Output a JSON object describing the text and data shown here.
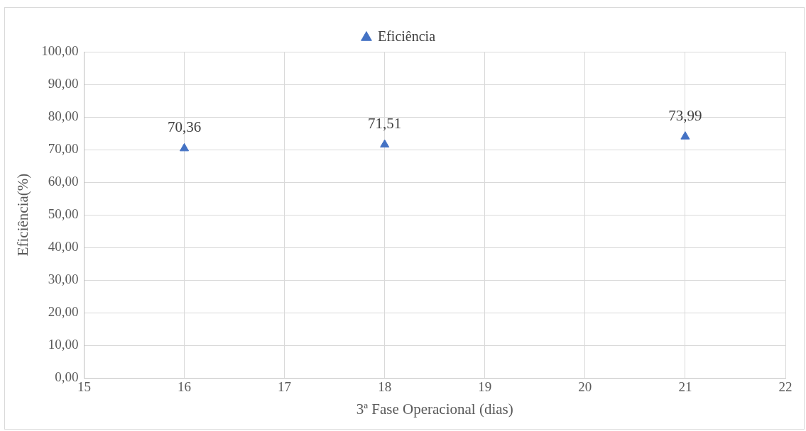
{
  "chart_data": {
    "type": "scatter",
    "xlabel": "3ª Fase Operacional (dias)",
    "ylabel": "Eficiência(%)",
    "x": [
      16,
      18,
      21
    ],
    "series": [
      {
        "name": "Eficiência",
        "color": "#4472c4",
        "values": [
          70.36,
          71.51,
          73.99
        ],
        "value_labels": [
          "70,36",
          "71,51",
          "73,99"
        ]
      }
    ],
    "xlim": [
      15,
      22
    ],
    "xticks": [
      15,
      16,
      17,
      18,
      19,
      20,
      21,
      22
    ],
    "ylim": [
      0,
      100
    ],
    "yticks": [
      {
        "value": 0,
        "label": "0,00"
      },
      {
        "value": 10,
        "label": "10,00"
      },
      {
        "value": 20,
        "label": "20,00"
      },
      {
        "value": 30,
        "label": "30,00"
      },
      {
        "value": 40,
        "label": "40,00"
      },
      {
        "value": 50,
        "label": "50,00"
      },
      {
        "value": 60,
        "label": "60,00"
      },
      {
        "value": 70,
        "label": "70,00"
      },
      {
        "value": 80,
        "label": "80,00"
      },
      {
        "value": 90,
        "label": "90,00"
      },
      {
        "value": 100,
        "label": "100,00"
      }
    ],
    "grid": true,
    "legend": "top",
    "marker": "triangle"
  }
}
